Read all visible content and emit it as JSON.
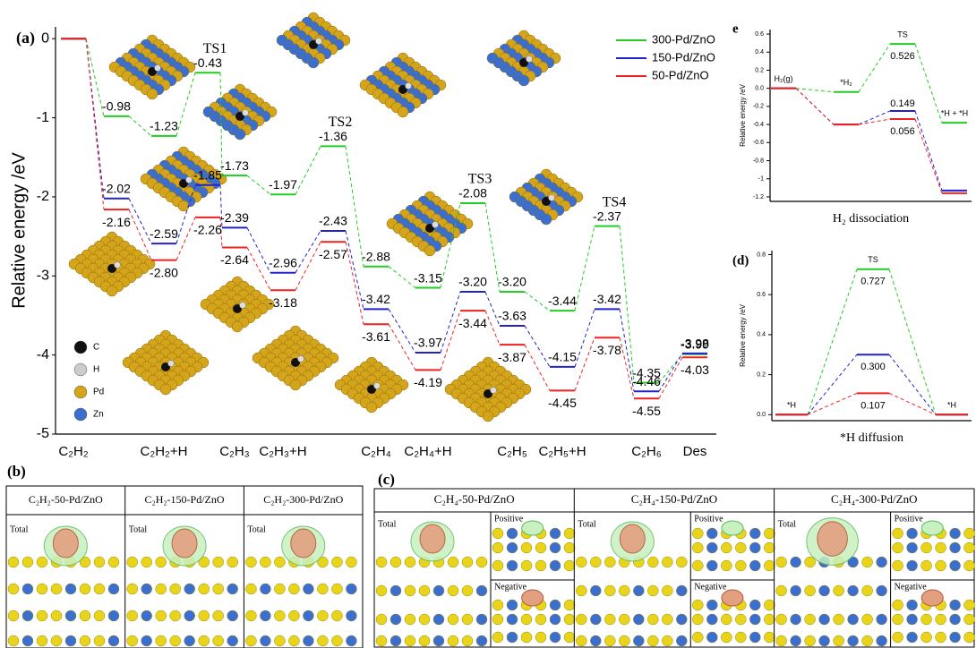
{
  "chart_data": [
    {
      "type": "energy-profile",
      "panel_label": "(a)",
      "y_label": "Relative energy /eV",
      "categories": [
        "C₂H₂",
        null,
        "C₂H₂+H",
        null,
        "C₂H₃",
        "C₂H₃+H",
        null,
        "C₂H₄",
        "C₂H₄+H",
        null,
        "C₂H₅",
        "C₂H₅+H",
        null,
        "C₂H₆",
        "Des"
      ],
      "annotations": [
        "TS1",
        "TS2",
        "TS3",
        "TS4"
      ],
      "series": [
        {
          "name": "300-Pd/ZnO",
          "color": "#22cc22",
          "values": [
            0,
            -0.98,
            -1.23,
            -0.43,
            -1.73,
            -1.97,
            -1.36,
            -2.88,
            -3.15,
            -2.08,
            -3.2,
            -3.44,
            -2.37,
            -4.35,
            -3.99
          ],
          "value_labels": [
            null,
            "-0.98",
            "-1.23",
            "-0.43",
            "-1.73",
            "-1.97",
            "-1.36",
            "-2.88",
            "-3.15",
            "-2.08",
            "-3.20",
            "-3.44",
            "-2.37",
            "-4.35",
            "-3.99"
          ]
        },
        {
          "name": "150-Pd/ZnO",
          "color": "#2222cc",
          "values": [
            0,
            -2.02,
            -2.59,
            -1.85,
            -2.39,
            -2.96,
            -2.43,
            -3.42,
            -3.97,
            -3.2,
            -3.63,
            -4.15,
            -3.42,
            -4.46,
            -3.98
          ],
          "value_labels": [
            null,
            "-2.02",
            "-2.59",
            "-1.85",
            "-2.39",
            "-2.96",
            "-2.43",
            "-3.42",
            "-3.97",
            "-3.20",
            "-3.63",
            "-4.15",
            "-3.42",
            "-4.46",
            "-3.98"
          ]
        },
        {
          "name": "50-Pd/ZnO",
          "color": "#ee2222",
          "values": [
            0,
            -2.16,
            -2.8,
            -2.26,
            -2.64,
            -3.18,
            -2.57,
            -3.61,
            -4.19,
            -3.44,
            -3.87,
            -4.45,
            -3.78,
            -4.55,
            -4.03
          ],
          "value_labels": [
            null,
            "-2.16",
            "-2.80",
            "-2.26",
            "-2.64",
            "-3.18",
            "-2.57",
            "-3.61",
            "-4.19",
            "-3.44",
            "-3.87",
            "-4.45",
            "-3.78",
            "-4.55",
            "-4.03"
          ]
        }
      ],
      "ylim": [
        -5,
        0.15
      ],
      "yticks": [
        0,
        -1,
        -2,
        -3,
        -4,
        -5
      ],
      "legend": "upper right",
      "atom_legend": [
        "C",
        "H",
        "Pd",
        "Zn"
      ]
    },
    {
      "type": "energy-profile",
      "panel_label": "e",
      "y_label": "Relative energy /eV",
      "x_label": "H₂  dissociation",
      "categories": [
        "H₂(g)",
        "*H₂",
        "TS",
        "*H + *H"
      ],
      "barrier_labels": [
        0.526,
        0.149,
        0.056
      ],
      "series": [
        {
          "color": "#22cc22",
          "values": [
            0,
            -0.04,
            0.49,
            -0.38
          ]
        },
        {
          "color": "#2222cc",
          "values": [
            0,
            -0.4,
            -0.25,
            -1.13
          ]
        },
        {
          "color": "#ee2222",
          "values": [
            0,
            -0.4,
            -0.34,
            -1.16
          ]
        }
      ],
      "ylim": [
        -1.25,
        0.65
      ],
      "yticks": [
        0.6,
        0.4,
        0.2,
        {
          "value": 0,
          "label": "0.0"
        },
        -0.2,
        -0.4,
        -0.6,
        -0.8,
        -1.0,
        -1.2
      ]
    },
    {
      "type": "energy-profile",
      "panel_label": "(d)",
      "y_label": "Relative energy /eV",
      "x_label": "*H  diffusion",
      "categories": [
        "*H",
        "TS",
        "*H"
      ],
      "series": [
        {
          "color": "#22cc22",
          "values": [
            0,
            0.727,
            0
          ],
          "value_labels": [
            null,
            "0.727",
            null
          ]
        },
        {
          "color": "#2222cc",
          "values": [
            0,
            0.3,
            0
          ],
          "value_labels": [
            null,
            "0.300",
            null
          ]
        },
        {
          "color": "#ee2222",
          "values": [
            0,
            0.107,
            0
          ],
          "value_labels": [
            null,
            "0.107",
            null
          ]
        }
      ],
      "ylim": [
        -0.03,
        0.82
      ],
      "yticks": [
        {
          "value": 0,
          "label": "0.0"
        },
        0.2,
        0.4,
        0.6,
        0.8
      ]
    }
  ],
  "panel_b": {
    "label": "(b)",
    "columns": [
      {
        "title": "C₂H₂-50-Pd/ZnO",
        "total": "Total"
      },
      {
        "title": "C₂H₂-150-Pd/ZnO",
        "total": "Total"
      },
      {
        "title": "C₂H₂-300-Pd/ZnO",
        "total": "Total"
      }
    ]
  },
  "panel_c": {
    "label": "(c)",
    "columns": [
      {
        "title": "C₂H₄-50-Pd/ZnO",
        "total": "Total",
        "positive": "Positive",
        "negative": "Negative"
      },
      {
        "title": "C₂H₄-150-Pd/ZnO",
        "total": "Total",
        "positive": "Positive",
        "negative": "Negative"
      },
      {
        "title": "C₂H₄-300-Pd/ZnO",
        "total": "Total",
        "positive": "Positive",
        "negative": "Negative"
      }
    ]
  }
}
